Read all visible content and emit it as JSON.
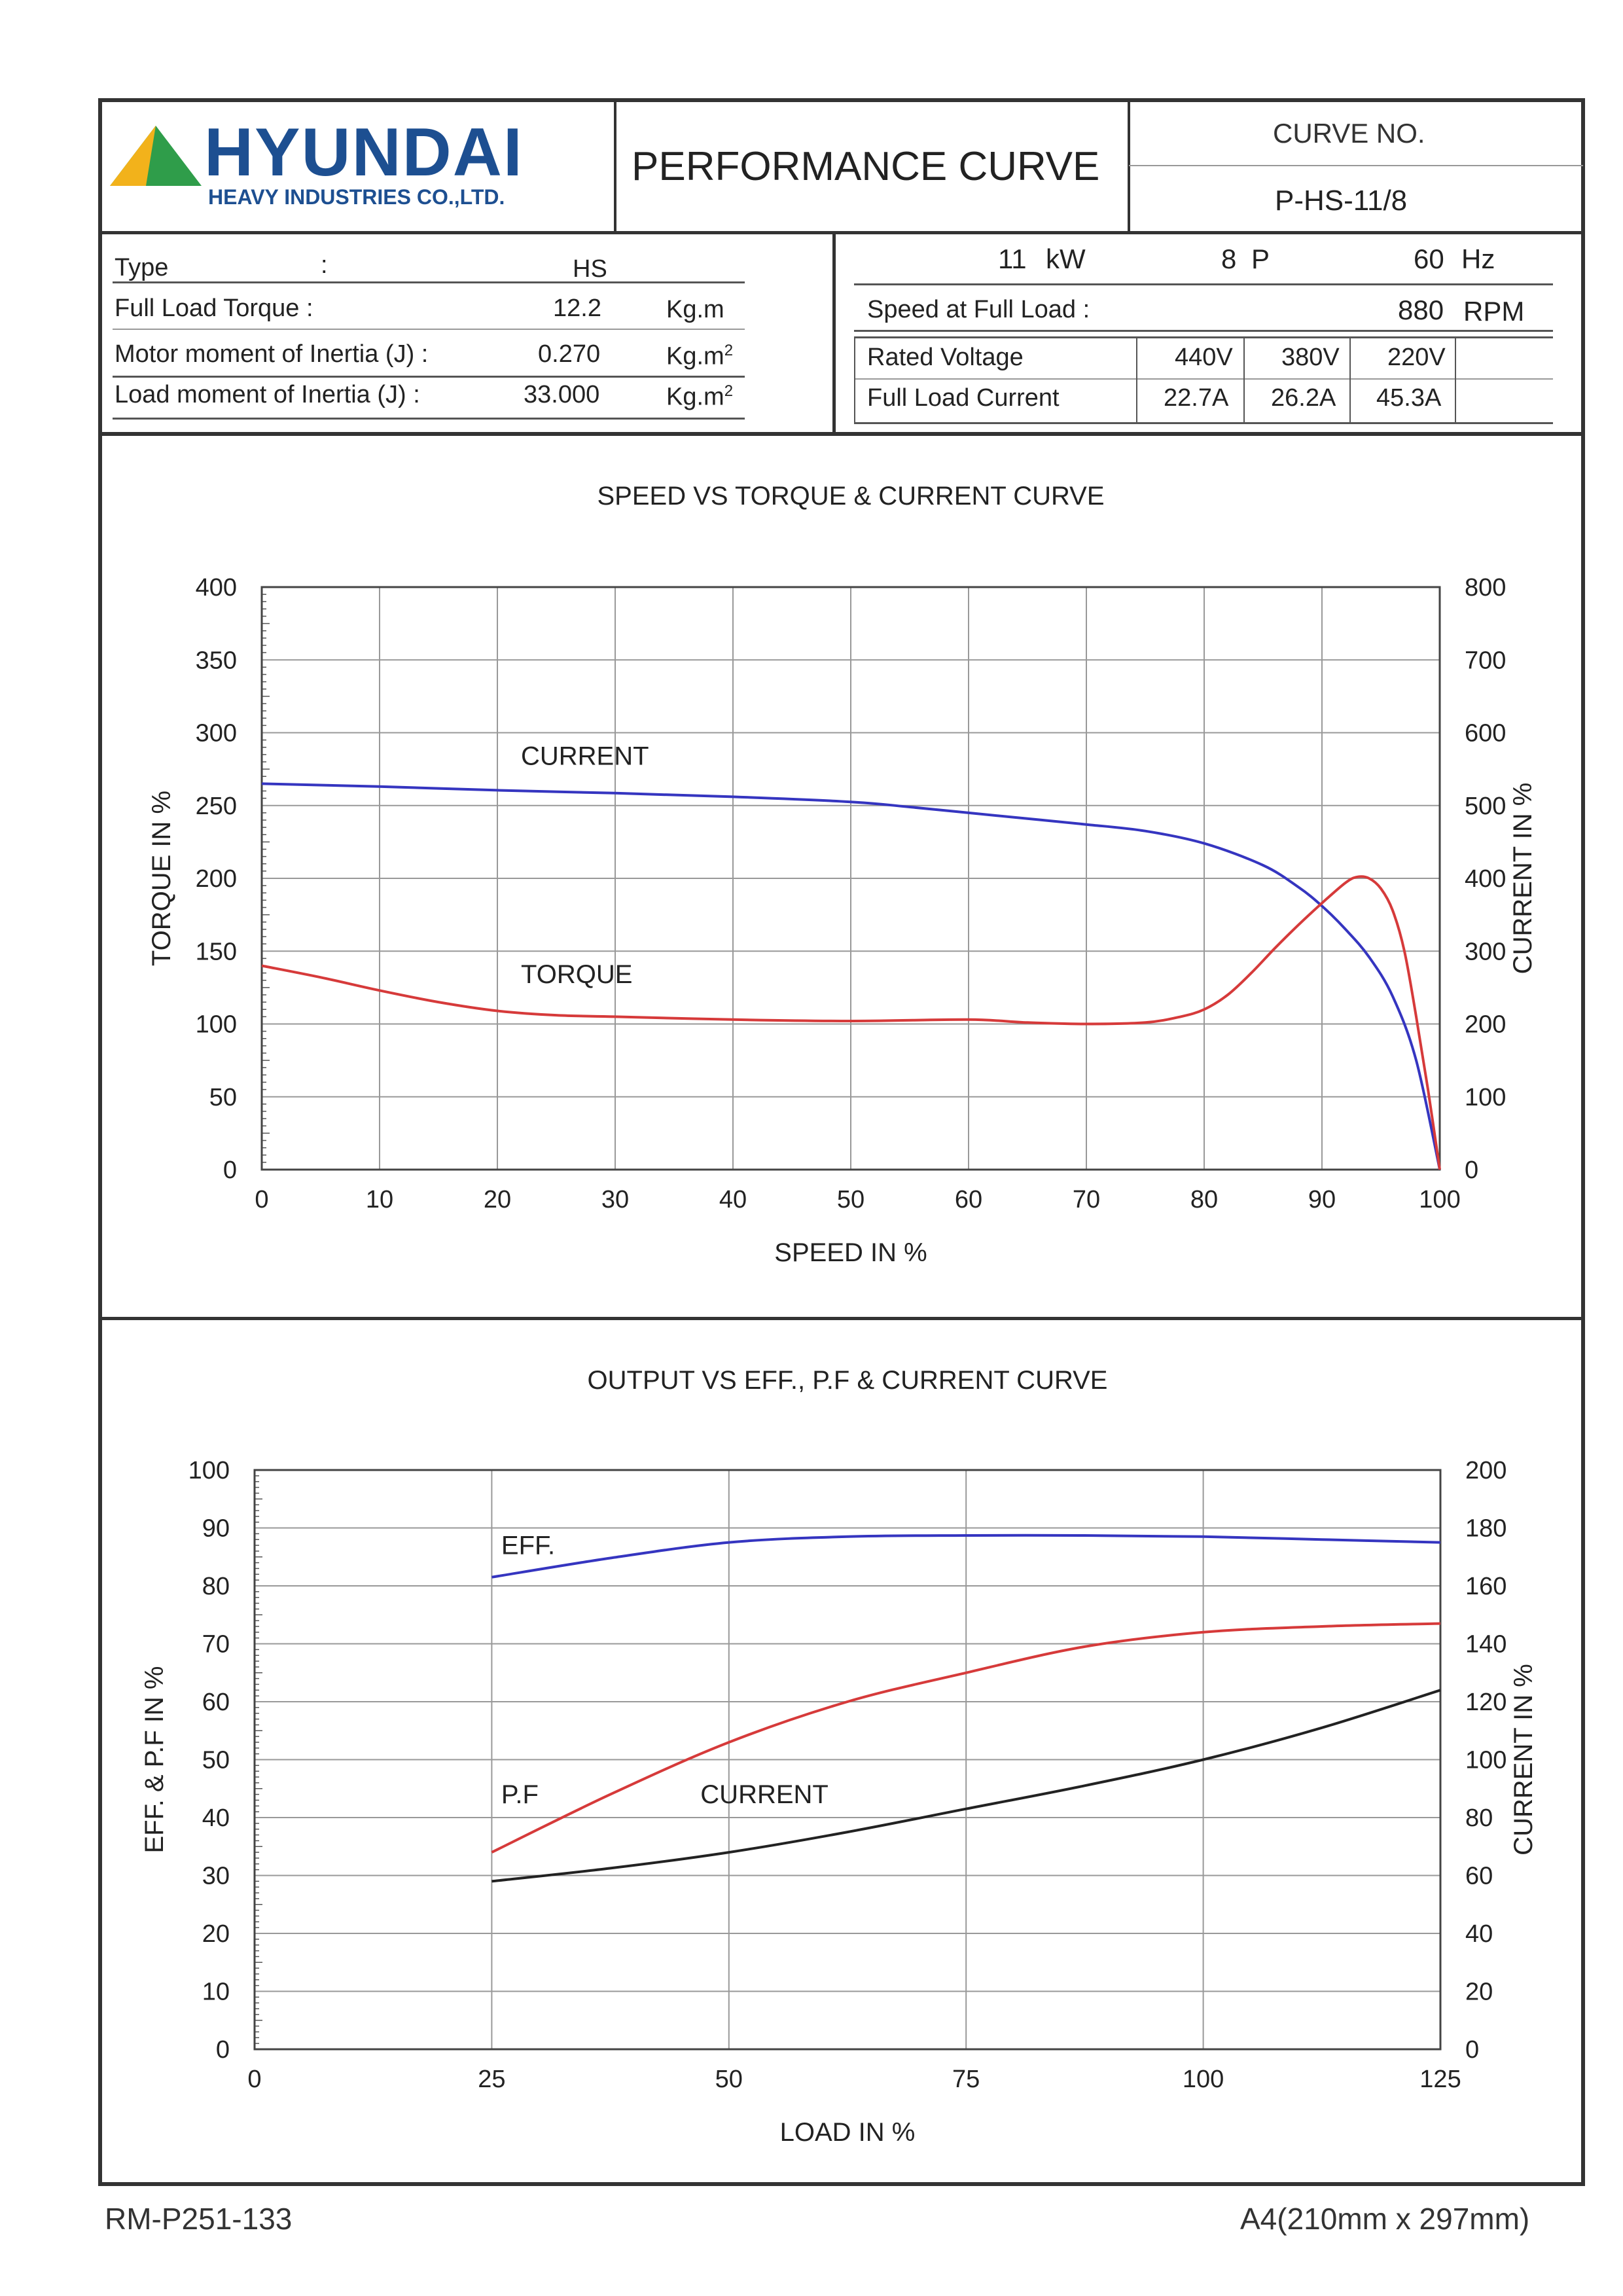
{
  "header": {
    "company": "HYUNDAI",
    "company_sub": "HEAVY INDUSTRIES CO.,LTD.",
    "title": "PERFORMANCE CURVE",
    "curve_no_label": "CURVE NO.",
    "curve_no": "P-HS-11/8"
  },
  "specs": {
    "type_label": "Type",
    "type_colon": ":",
    "type_value": "HS",
    "torque_label": "Full Load Torque :",
    "torque_value": "12.2",
    "torque_unit": "Kg.m",
    "motor_inertia_label": "Motor moment of Inertia (J) :",
    "motor_inertia_value": "0.270",
    "load_inertia_label": "Load moment of Inertia (J) :",
    "load_inertia_value": "33.000",
    "inertia_unit_base": "Kg.m",
    "inertia_unit_sup": "2",
    "power_value": "11",
    "power_unit": "kW",
    "poles_value": "8",
    "poles_unit": "P",
    "freq_value": "60",
    "freq_unit": "Hz",
    "speed_label": "Speed at Full Load :",
    "speed_value": "880",
    "speed_unit": "RPM",
    "voltage_label": "Rated Voltage",
    "voltages": [
      "440V",
      "380V",
      "220V"
    ],
    "current_label": "Full Load Current",
    "currents": [
      "22.7A",
      "26.2A",
      "45.3A"
    ]
  },
  "footer": {
    "left": "RM-P251-133",
    "right": "A4(210mm x 297mm)"
  },
  "colors": {
    "blue": "#3535c0",
    "red": "#d63a3a",
    "black": "#222222",
    "logo_blue": "#1d4f91",
    "logo_green": "#2f9d4a",
    "logo_yellow": "#f2b21b"
  },
  "chart_data": [
    {
      "type": "line",
      "title": "SPEED VS TORQUE & CURRENT CURVE",
      "xlabel": "SPEED IN %",
      "ylabel": "TORQUE IN %",
      "y2label": "CURRENT IN %",
      "xlim": [
        0,
        100
      ],
      "ylim": [
        0,
        400
      ],
      "y2lim": [
        0,
        800
      ],
      "xticks": [
        0,
        10,
        20,
        30,
        40,
        50,
        60,
        70,
        80,
        90,
        100
      ],
      "yticks": [
        0,
        50,
        100,
        150,
        200,
        250,
        300,
        350,
        400
      ],
      "y2ticks": [
        0,
        100,
        200,
        300,
        400,
        500,
        600,
        700,
        800
      ],
      "grid": true,
      "series": [
        {
          "name": "CURRENT",
          "axis": "y2",
          "color": "#3535c0",
          "x": [
            0,
            10,
            20,
            30,
            40,
            50,
            55,
            60,
            65,
            70,
            75,
            80,
            85,
            88,
            90,
            92,
            94,
            96,
            98,
            100
          ],
          "y": [
            530,
            526,
            521,
            517,
            512,
            505,
            498,
            490,
            482,
            474,
            465,
            448,
            418,
            388,
            362,
            330,
            292,
            238,
            150,
            0
          ]
        },
        {
          "name": "TORQUE",
          "axis": "y",
          "color": "#d63a3a",
          "x": [
            0,
            5,
            10,
            15,
            20,
            25,
            30,
            40,
            50,
            60,
            65,
            70,
            75,
            78,
            80,
            82,
            84,
            86,
            88,
            90,
            92,
            93,
            94,
            95,
            96,
            97,
            98,
            99,
            100
          ],
          "y": [
            140,
            132,
            123,
            115,
            109,
            106,
            105,
            103,
            102,
            103,
            101,
            100,
            101,
            105,
            110,
            120,
            135,
            152,
            168,
            183,
            197,
            201,
            200,
            193,
            178,
            150,
            105,
            55,
            0
          ]
        }
      ],
      "annotations": [
        {
          "text": "CURRENT",
          "x": 22,
          "y": 278
        },
        {
          "text": "TORQUE",
          "x": 22,
          "y": 128
        }
      ]
    },
    {
      "type": "line",
      "title": "OUTPUT VS EFF., P.F & CURRENT CURVE",
      "xlabel": "LOAD IN %",
      "ylabel": "EFF. & P.F IN %",
      "y2label": "CURRENT IN %",
      "xlim": [
        0,
        125
      ],
      "ylim": [
        0,
        100
      ],
      "y2lim": [
        0,
        200
      ],
      "xticks": [
        0,
        25,
        50,
        75,
        100,
        125
      ],
      "yticks": [
        0,
        10,
        20,
        30,
        40,
        50,
        60,
        70,
        80,
        90,
        100
      ],
      "y2ticks": [
        0,
        20,
        40,
        60,
        80,
        100,
        120,
        140,
        160,
        180,
        200
      ],
      "grid": true,
      "series": [
        {
          "name": "EFF.",
          "axis": "y",
          "color": "#3535c0",
          "x": [
            25,
            37.5,
            50,
            62.5,
            75,
            87.5,
            100,
            112.5,
            125
          ],
          "y": [
            81.5,
            84.8,
            87.5,
            88.5,
            88.7,
            88.7,
            88.5,
            88.0,
            87.5
          ]
        },
        {
          "name": "P.F",
          "axis": "y",
          "color": "#d63a3a",
          "x": [
            25,
            37.5,
            50,
            62.5,
            75,
            87.5,
            100,
            112.5,
            125
          ],
          "y": [
            34,
            44,
            53,
            60,
            65,
            69.5,
            72,
            73,
            73.5
          ]
        },
        {
          "name": "CURRENT",
          "axis": "y2",
          "color": "#222222",
          "x": [
            25,
            37.5,
            50,
            62.5,
            75,
            87.5,
            100,
            112.5,
            125
          ],
          "y": [
            58,
            62.5,
            68,
            75,
            83,
            91,
            100,
            111,
            124
          ]
        }
      ],
      "annotations": [
        {
          "text": "EFF.",
          "x": 26,
          "y": 85.5
        },
        {
          "text": "P.F",
          "x": 26,
          "y": 42.5
        },
        {
          "text": "CURRENT",
          "x": 47,
          "y": 42.5
        }
      ]
    }
  ]
}
